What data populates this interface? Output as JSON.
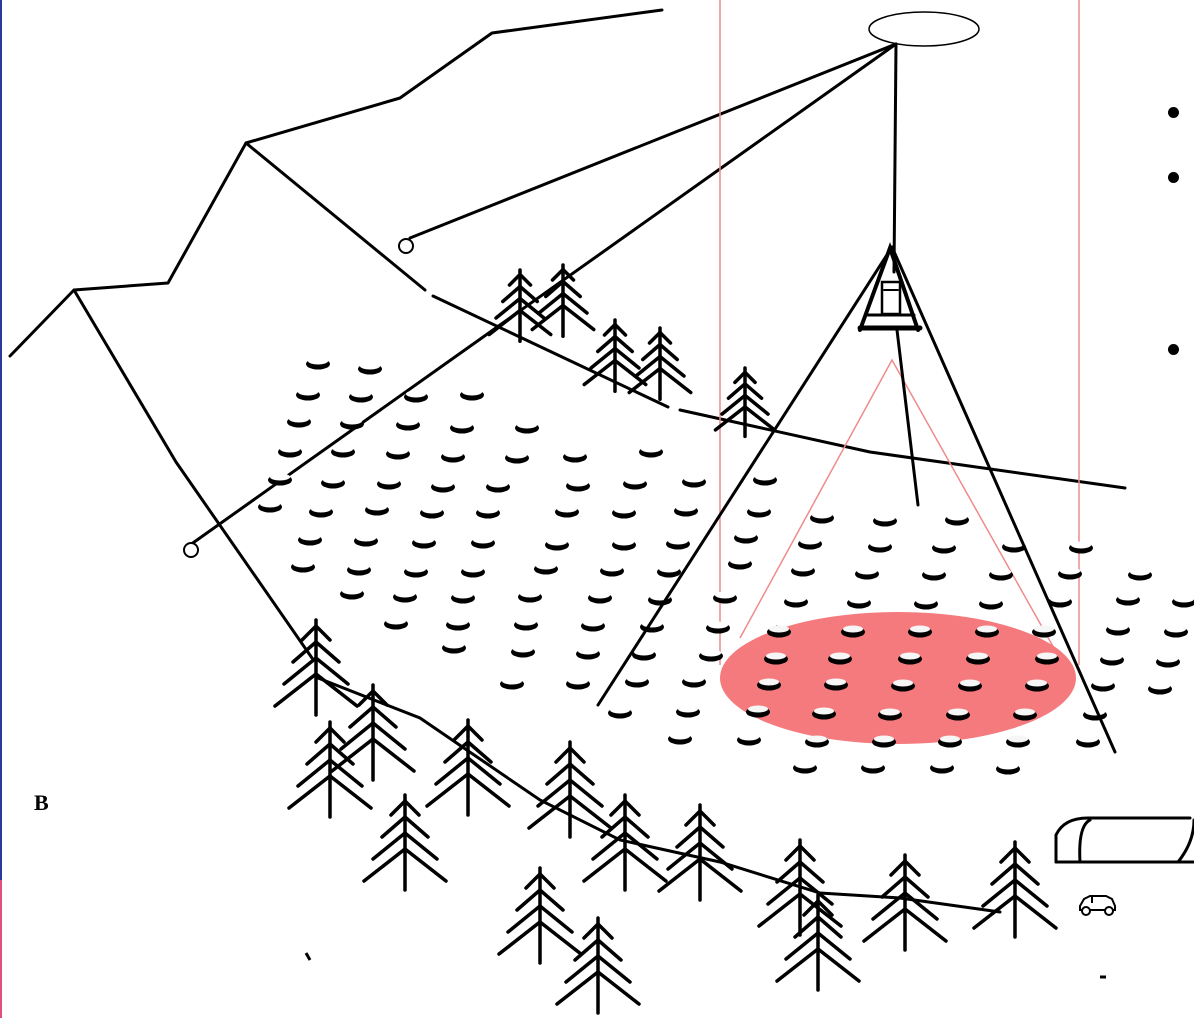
{
  "labels": {
    "panel_letter": "B"
  },
  "colors": {
    "ink": "#000000",
    "footprint": "#f57a7e",
    "guide": "#f08a8c",
    "frame": "#2b3a9a",
    "frame_accent": "#e0507a"
  },
  "bullet_count": 3,
  "icons": [
    "detector-tank-icon",
    "tetrahedral-tower-icon",
    "mountain-ridge-icon",
    "pine-tree-icon",
    "hangar-icon",
    "car-icon",
    "balloon-icon"
  ]
}
